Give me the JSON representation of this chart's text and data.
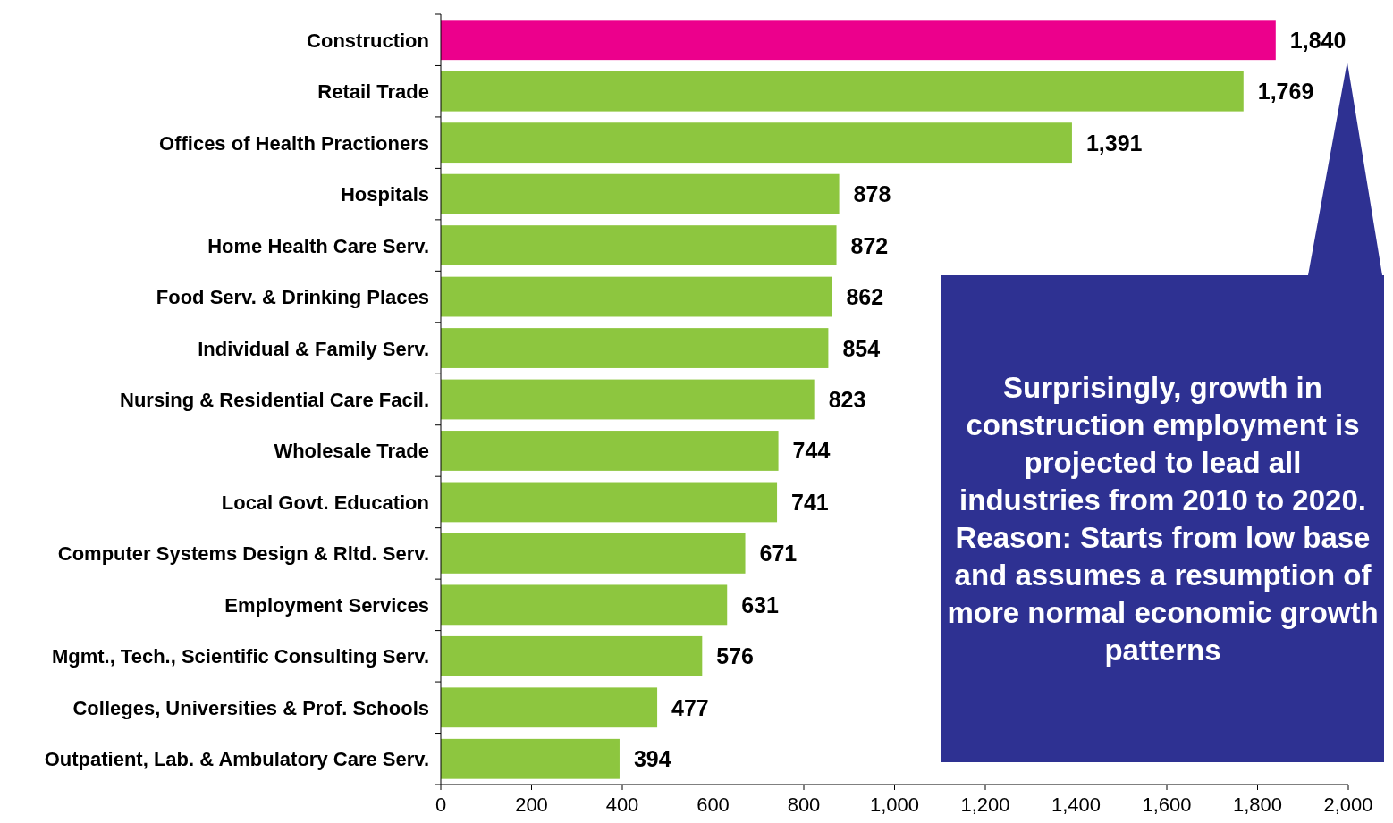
{
  "chart_data": {
    "type": "bar",
    "orientation": "horizontal",
    "categories": [
      "Construction",
      "Retail Trade",
      "Offices of Health Practioners",
      "Hospitals",
      "Home Health Care Serv.",
      "Food Serv. & Drinking Places",
      "Individual & Family Serv.",
      "Nursing & Residential Care Facil.",
      "Wholesale Trade",
      "Local Govt. Education",
      "Computer Systems Design & Rltd. Serv.",
      "Employment Services",
      "Mgmt., Tech., Scientific Consulting Serv.",
      "Colleges, Universities & Prof. Schools",
      "Outpatient, Lab. & Ambulatory Care Serv."
    ],
    "values": [
      1840,
      1769,
      1391,
      878,
      872,
      862,
      854,
      823,
      744,
      741,
      671,
      631,
      576,
      477,
      394
    ],
    "colors": [
      "#ec008c",
      "#8dc63f",
      "#8dc63f",
      "#8dc63f",
      "#8dc63f",
      "#8dc63f",
      "#8dc63f",
      "#8dc63f",
      "#8dc63f",
      "#8dc63f",
      "#8dc63f",
      "#8dc63f",
      "#8dc63f",
      "#8dc63f",
      "#8dc63f"
    ],
    "xlim": [
      0,
      2000
    ],
    "xticks": [
      0,
      200,
      400,
      600,
      800,
      {
        "value": 1000,
        "label": "1,000"
      },
      {
        "value": 1200,
        "label": "1,200"
      },
      {
        "value": 1400,
        "label": "1,400"
      },
      {
        "value": 1600,
        "label": "1,600"
      },
      {
        "value": 1800,
        "label": "1,800"
      },
      {
        "value": 2000,
        "label": "2,000"
      }
    ],
    "value_labels": [
      "1,840",
      "1,769",
      "1,391",
      "878",
      "872",
      "862",
      "854",
      "823",
      "744",
      "741",
      "671",
      "631",
      "576",
      "477",
      "394"
    ],
    "grid": false,
    "annotations": [
      "Surprisingly, growth in construction employment is projected to lead all industries from 2010 to 2020.  Reason: Starts from low base and assumes a resumption of more normal economic growth patterns"
    ]
  }
}
